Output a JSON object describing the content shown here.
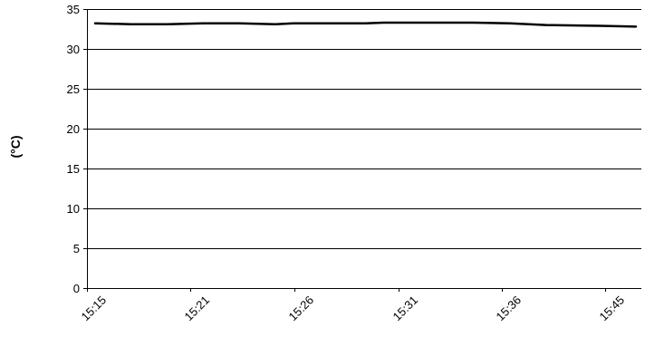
{
  "chart_data": {
    "type": "line",
    "title": "",
    "xlabel": "",
    "ylabel": "(°C)",
    "ylim": [
      0,
      35
    ],
    "yticks": [
      0,
      5,
      10,
      15,
      20,
      25,
      30,
      35
    ],
    "grid": "horizontal",
    "x_tick_labels": [
      "15:15",
      "15:21",
      "15:26",
      "15:31",
      "15:36",
      "15:45"
    ],
    "series": [
      {
        "x": [
          "15:15",
          "15:17",
          "15:19",
          "15:21",
          "15:23",
          "15:25",
          "15:26",
          "15:28",
          "15:30",
          "15:31",
          "15:33",
          "15:35",
          "15:36",
          "15:38",
          "15:40",
          "15:43",
          "15:45"
        ],
        "values": [
          33.2,
          33.1,
          33.1,
          33.2,
          33.2,
          33.1,
          33.2,
          33.2,
          33.2,
          33.3,
          33.3,
          33.3,
          33.3,
          33.2,
          33.0,
          32.9,
          32.8
        ]
      }
    ],
    "colors": {
      "line": "#000000",
      "grid": "#000000"
    }
  }
}
